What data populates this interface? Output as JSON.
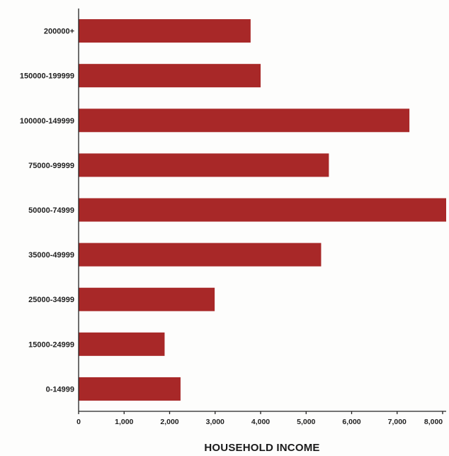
{
  "chart_data": {
    "type": "bar",
    "orientation": "horizontal",
    "categories": [
      "200000+",
      "150000-199999",
      "100000-149999",
      "75000-99999",
      "50000-74999",
      "35000-49999",
      "25000-34999",
      "15000-24999",
      "0-14999"
    ],
    "values": [
      3780,
      4000,
      7270,
      5500,
      8100,
      5330,
      2990,
      1890,
      2240
    ],
    "xlabel": "HOUSEHOLD INCOME",
    "ylabel": "",
    "xlim": [
      0,
      8000
    ],
    "x_ticks": [
      "0",
      "1,000",
      "2,000",
      "3,000",
      "4,000",
      "5,000",
      "6,000",
      "7,000",
      "8,000"
    ],
    "x_tick_values": [
      0,
      1000,
      2000,
      3000,
      4000,
      5000,
      6000,
      7000,
      8000
    ],
    "grid": false,
    "legend": "none",
    "bar_color": "#a82828"
  }
}
